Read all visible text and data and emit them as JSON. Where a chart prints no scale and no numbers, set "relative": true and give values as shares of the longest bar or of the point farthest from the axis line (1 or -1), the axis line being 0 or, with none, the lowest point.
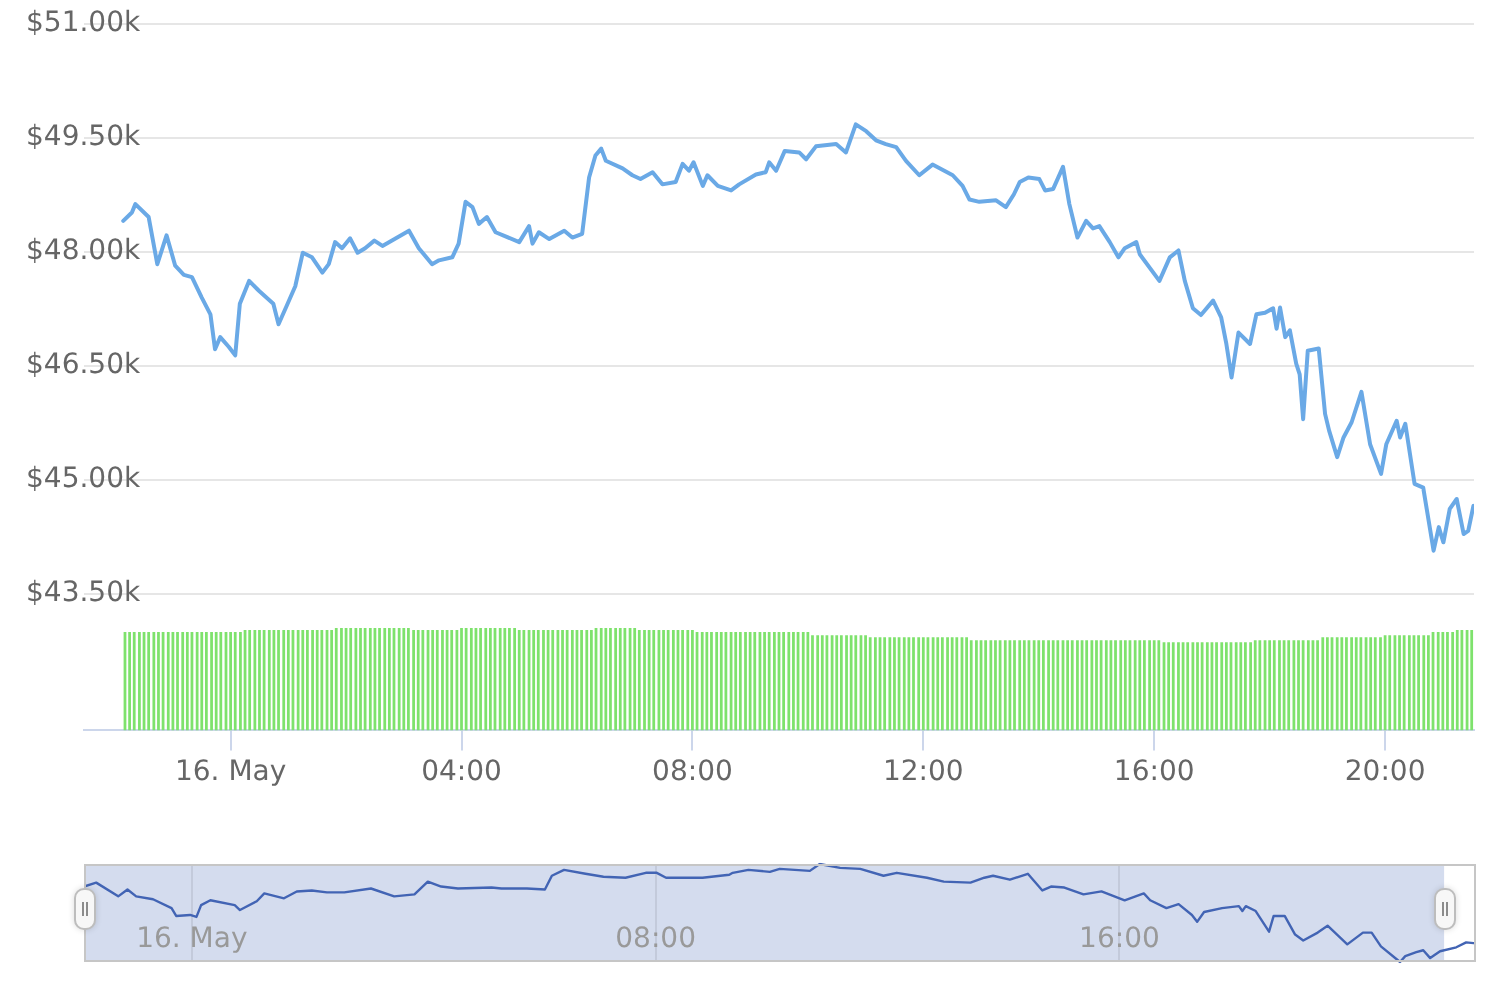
{
  "chart_data": [
    {
      "type": "line",
      "color": "#6aa9e6",
      "x": [
        -1.86,
        -1.71,
        -1.65,
        -1.42,
        -1.27,
        -1.11,
        -0.96,
        -0.81,
        -0.67,
        -0.5,
        -0.35,
        -0.27,
        -0.18,
        -0.03,
        0.08,
        0.16,
        0.32,
        0.49,
        0.74,
        0.83,
        0.97,
        1.12,
        1.25,
        1.41,
        1.59,
        1.7,
        1.81,
        1.93,
        2.07,
        2.2,
        2.33,
        2.49,
        2.63,
        3.09,
        3.26,
        3.49,
        3.61,
        3.84,
        3.95,
        4.07,
        4.19,
        4.3,
        4.44,
        4.59,
        5.0,
        5.17,
        5.23,
        5.34,
        5.52,
        5.78,
        5.92,
        6.09,
        6.21,
        6.32,
        6.42,
        6.5,
        6.79,
        6.96,
        7.1,
        7.31,
        7.48,
        7.71,
        7.83,
        7.94,
        8.02,
        8.18,
        8.26,
        8.44,
        8.67,
        8.81,
        9.1,
        9.27,
        9.33,
        9.45,
        9.6,
        9.85,
        9.97,
        10.14,
        10.49,
        10.66,
        10.83,
        11.01,
        11.18,
        11.35,
        11.53,
        11.7,
        11.93,
        12.16,
        12.51,
        12.68,
        12.8,
        12.97,
        13.26,
        13.43,
        13.57,
        13.67,
        13.82,
        14.01,
        14.11,
        14.25,
        14.42,
        14.53,
        14.67,
        14.82,
        14.94,
        15.05,
        15.23,
        15.38,
        15.49,
        15.69,
        15.75,
        16.09,
        16.27,
        16.42,
        16.53,
        16.67,
        16.81,
        17.02,
        17.16,
        17.25,
        17.34,
        17.46,
        17.66,
        17.77,
        17.92,
        18.06,
        18.12,
        18.18,
        18.27,
        18.35,
        18.46,
        18.52,
        18.58,
        18.66,
        18.85,
        18.96,
        19.03,
        19.17,
        19.28,
        19.42,
        19.59,
        19.74,
        19.93,
        20.02,
        20.2,
        20.26,
        20.35,
        20.51,
        20.66,
        20.84,
        20.93,
        21.01,
        21.12,
        21.24,
        21.36,
        21.44,
        21.53
      ],
      "values": [
        48410,
        48520,
        48630,
        48460,
        47840,
        48220,
        47820,
        47700,
        47670,
        47400,
        47180,
        46720,
        46880,
        46750,
        46640,
        47320,
        47620,
        47490,
        47320,
        47050,
        47290,
        47550,
        47990,
        47930,
        47730,
        47840,
        48130,
        48050,
        48180,
        47990,
        48050,
        48150,
        48080,
        48280,
        48050,
        47840,
        47890,
        47930,
        48110,
        48660,
        48590,
        48370,
        48460,
        48260,
        48130,
        48340,
        48110,
        48260,
        48170,
        48280,
        48190,
        48240,
        48980,
        49270,
        49360,
        49200,
        49100,
        49010,
        48960,
        49050,
        48890,
        48920,
        49160,
        49070,
        49180,
        48870,
        49010,
        48870,
        48810,
        48890,
        49020,
        49050,
        49180,
        49070,
        49330,
        49310,
        49220,
        49390,
        49420,
        49310,
        49680,
        49590,
        49470,
        49420,
        49380,
        49200,
        49010,
        49150,
        49010,
        48870,
        48690,
        48660,
        48680,
        48590,
        48760,
        48920,
        48980,
        48960,
        48810,
        48830,
        49120,
        48630,
        48190,
        48410,
        48310,
        48340,
        48130,
        47930,
        48050,
        48130,
        47970,
        47620,
        47930,
        48020,
        47620,
        47260,
        47170,
        47360,
        47140,
        46790,
        46350,
        46940,
        46790,
        47180,
        47200,
        47260,
        46990,
        47270,
        46880,
        46970,
        46530,
        46390,
        45800,
        46700,
        46730,
        45870,
        45650,
        45300,
        45560,
        45760,
        46160,
        45470,
        45080,
        45470,
        45780,
        45560,
        45740,
        44950,
        44900,
        44070,
        44380,
        44180,
        44620,
        44750,
        44290,
        44330,
        44660
      ],
      "xlim": [
        -2.54,
        21.54
      ],
      "ylim": [
        43500,
        51000
      ],
      "yticks": [
        {
          "value": 43500,
          "label": "$43.50k"
        },
        {
          "value": 45000,
          "label": "$45.00k"
        },
        {
          "value": 46500,
          "label": "$46.50k"
        },
        {
          "value": 48000,
          "label": "$48.00k"
        },
        {
          "value": 49500,
          "label": "$49.50k"
        },
        {
          "value": 51000,
          "label": "$51.00k"
        }
      ],
      "grid": "y",
      "tick_labels": "y"
    },
    {
      "type": "bar",
      "color": "#7ee26c",
      "relative": true,
      "x": [
        -1.83,
        -1.75,
        -1.67,
        -1.58,
        -1.5,
        -1.42,
        -1.33,
        -1.25,
        -1.17,
        -1.08,
        -1,
        -0.92,
        -0.83,
        -0.75,
        -0.67,
        -0.58,
        -0.5,
        -0.42,
        -0.33,
        -0.25,
        -0.17,
        -0.08,
        0,
        0.08,
        0.17,
        0.25,
        0.33,
        0.42,
        0.5,
        0.58,
        0.67,
        0.75,
        0.83,
        0.92,
        1,
        1.08,
        1.17,
        1.25,
        1.33,
        1.42,
        1.5,
        1.58,
        1.67,
        1.75,
        1.83,
        1.92,
        2,
        2.08,
        2.17,
        2.25,
        2.33,
        2.42,
        2.5,
        2.58,
        2.67,
        2.75,
        2.83,
        2.92,
        3,
        3.08,
        3.17,
        3.25,
        3.33,
        3.42,
        3.5,
        3.58,
        3.67,
        3.75,
        3.83,
        3.92,
        4,
        4.08,
        4.17,
        4.25,
        4.33,
        4.42,
        4.5,
        4.58,
        4.67,
        4.75,
        4.83,
        4.92,
        5,
        5.08,
        5.17,
        5.25,
        5.33,
        5.42,
        5.5,
        5.58,
        5.67,
        5.75,
        5.83,
        5.92,
        6,
        6.08,
        6.17,
        6.25,
        6.33,
        6.42,
        6.5,
        6.58,
        6.67,
        6.75,
        6.83,
        6.92,
        7,
        7.08,
        7.17,
        7.25,
        7.33,
        7.42,
        7.5,
        7.58,
        7.67,
        7.75,
        7.83,
        7.92,
        8,
        8.08,
        8.17,
        8.25,
        8.33,
        8.42,
        8.5,
        8.58,
        8.67,
        8.75,
        8.83,
        8.92,
        9,
        9.08,
        9.17,
        9.25,
        9.33,
        9.42,
        9.5,
        9.58,
        9.67,
        9.75,
        9.83,
        9.92,
        10,
        10.08,
        10.17,
        10.25,
        10.33,
        10.42,
        10.5,
        10.58,
        10.67,
        10.75,
        10.83,
        10.92,
        11,
        11.08,
        11.17,
        11.25,
        11.33,
        11.42,
        11.5,
        11.58,
        11.67,
        11.75,
        11.83,
        11.92,
        12,
        12.08,
        12.17,
        12.25,
        12.33,
        12.42,
        12.5,
        12.58,
        12.67,
        12.75,
        12.83,
        12.92,
        13,
        13.08,
        13.17,
        13.25,
        13.33,
        13.42,
        13.5,
        13.58,
        13.67,
        13.75,
        13.83,
        13.92,
        14,
        14.08,
        14.17,
        14.25,
        14.33,
        14.42,
        14.5,
        14.58,
        14.67,
        14.75,
        14.83,
        14.92,
        15,
        15.08,
        15.17,
        15.25,
        15.33,
        15.42,
        15.5,
        15.58,
        15.67,
        15.75,
        15.83,
        15.92,
        16,
        16.08,
        16.17,
        16.25,
        16.33,
        16.42,
        16.5,
        16.58,
        16.67,
        16.75,
        16.83,
        16.92,
        17,
        17.08,
        17.17,
        17.25,
        17.33,
        17.42,
        17.5,
        17.58,
        17.67,
        17.75,
        17.83,
        17.92,
        18,
        18.08,
        18.17,
        18.25,
        18.33,
        18.42,
        18.5,
        18.58,
        18.67,
        18.75,
        18.83,
        18.92,
        19,
        19.08,
        19.17,
        19.25,
        19.33,
        19.42,
        19.5,
        19.58,
        19.67,
        19.75,
        19.83,
        19.92,
        20,
        20.08,
        20.17,
        20.25,
        20.33,
        20.42,
        20.5,
        20.58,
        20.67,
        20.75,
        20.83,
        20.92,
        21,
        21.08,
        21.17,
        21.25,
        21.33,
        21.42,
        21.5
      ],
      "values": [
        0.96,
        0.96,
        0.96,
        0.96,
        0.96,
        0.96,
        0.96,
        0.96,
        0.96,
        0.96,
        0.96,
        0.96,
        0.96,
        0.96,
        0.96,
        0.96,
        0.96,
        0.96,
        0.96,
        0.96,
        0.96,
        0.96,
        0.96,
        0.96,
        0.96,
        0.98,
        0.98,
        0.98,
        0.98,
        0.98,
        0.98,
        0.98,
        0.98,
        0.98,
        0.98,
        0.98,
        0.98,
        0.98,
        0.98,
        0.98,
        0.98,
        0.98,
        0.98,
        0.98,
        1,
        1,
        1,
        1,
        1,
        1,
        1,
        1,
        1,
        1,
        1,
        1,
        1,
        1,
        1,
        1,
        0.98,
        0.98,
        0.98,
        0.98,
        0.98,
        0.98,
        0.98,
        0.98,
        0.98,
        0.98,
        1,
        1,
        1,
        1,
        1,
        1,
        1,
        1,
        1,
        1,
        1,
        1,
        0.98,
        0.98,
        0.98,
        0.98,
        0.98,
        0.98,
        0.98,
        0.98,
        0.98,
        0.98,
        0.98,
        0.98,
        0.98,
        0.98,
        0.98,
        0.98,
        1,
        1,
        1,
        1,
        1,
        1,
        1,
        1,
        1,
        0.98,
        0.98,
        0.98,
        0.98,
        0.98,
        0.98,
        0.98,
        0.98,
        0.98,
        0.98,
        0.98,
        0.98,
        0.96,
        0.96,
        0.96,
        0.96,
        0.96,
        0.96,
        0.96,
        0.96,
        0.96,
        0.96,
        0.96,
        0.96,
        0.96,
        0.96,
        0.96,
        0.96,
        0.96,
        0.96,
        0.96,
        0.96,
        0.96,
        0.96,
        0.96,
        0.96,
        0.93,
        0.93,
        0.93,
        0.93,
        0.93,
        0.93,
        0.93,
        0.93,
        0.93,
        0.93,
        0.93,
        0.93,
        0.91,
        0.91,
        0.91,
        0.91,
        0.91,
        0.91,
        0.91,
        0.91,
        0.91,
        0.91,
        0.91,
        0.91,
        0.91,
        0.91,
        0.91,
        0.91,
        0.91,
        0.91,
        0.91,
        0.91,
        0.91,
        0.88,
        0.88,
        0.88,
        0.88,
        0.88,
        0.88,
        0.88,
        0.88,
        0.88,
        0.88,
        0.88,
        0.88,
        0.88,
        0.88,
        0.88,
        0.88,
        0.88,
        0.88,
        0.88,
        0.88,
        0.88,
        0.88,
        0.88,
        0.88,
        0.88,
        0.88,
        0.88,
        0.88,
        0.88,
        0.88,
        0.88,
        0.88,
        0.88,
        0.88,
        0.88,
        0.88,
        0.88,
        0.88,
        0.88,
        0.88,
        0.86,
        0.86,
        0.86,
        0.86,
        0.86,
        0.86,
        0.86,
        0.86,
        0.86,
        0.86,
        0.86,
        0.86,
        0.86,
        0.86,
        0.86,
        0.86,
        0.86,
        0.86,
        0.86,
        0.88,
        0.88,
        0.88,
        0.88,
        0.88,
        0.88,
        0.88,
        0.88,
        0.88,
        0.88,
        0.88,
        0.88,
        0.88,
        0.88,
        0.91,
        0.91,
        0.91,
        0.91,
        0.91,
        0.91,
        0.91,
        0.91,
        0.91,
        0.91,
        0.91,
        0.91,
        0.91,
        0.93,
        0.93,
        0.93,
        0.93,
        0.93,
        0.93,
        0.93,
        0.93,
        0.93,
        0.93,
        0.96,
        0.96,
        0.96,
        0.96,
        0.96,
        0.98,
        0.98,
        0.98,
        0.98
      ],
      "xlim": [
        -2.54,
        21.54
      ],
      "xticks": [
        {
          "value": 0,
          "label": "16. May"
        },
        {
          "value": 4,
          "label": "04:00"
        },
        {
          "value": 8,
          "label": "08:00"
        },
        {
          "value": 12,
          "label": "12:00"
        },
        {
          "value": 16,
          "label": "16:00"
        },
        {
          "value": 20,
          "label": "20:00"
        }
      ],
      "tick_labels": "x"
    },
    {
      "type": "line",
      "color": "#4264b4",
      "relative": true,
      "x": [
        -1.86,
        -1.65,
        -1.27,
        -1.11,
        -0.96,
        -0.67,
        -0.35,
        -0.27,
        -0.03,
        0.08,
        0.16,
        0.32,
        0.74,
        0.83,
        1.12,
        1.25,
        1.59,
        1.81,
        2.07,
        2.33,
        2.63,
        3.09,
        3.49,
        3.84,
        4.07,
        4.3,
        4.59,
        5.17,
        5.34,
        5.78,
        6.09,
        6.21,
        6.42,
        6.79,
        7.1,
        7.48,
        7.83,
        8.02,
        8.18,
        8.44,
        8.81,
        9.27,
        9.33,
        9.6,
        9.97,
        10.14,
        10.66,
        10.83,
        11.18,
        11.53,
        11.93,
        12.16,
        12.68,
        12.97,
        13.43,
        13.67,
        13.82,
        14.11,
        14.42,
        14.67,
        14.82,
        15.05,
        15.38,
        15.69,
        16.09,
        16.42,
        16.53,
        16.81,
        17.02,
        17.25,
        17.34,
        17.46,
        17.77,
        18.06,
        18.12,
        18.18,
        18.35,
        18.58,
        18.66,
        18.85,
        19.03,
        19.17,
        19.42,
        19.59,
        19.93,
        20.2,
        20.35,
        20.51,
        20.84,
        20.93,
        21.12,
        21.24,
        21.36,
        21.53,
        21.81,
        21.98,
        22.15
      ],
      "values": [
        0.77,
        0.81,
        0.67,
        0.74,
        0.67,
        0.64,
        0.55,
        0.47,
        0.48,
        0.46,
        0.58,
        0.63,
        0.58,
        0.53,
        0.62,
        0.7,
        0.65,
        0.72,
        0.73,
        0.71,
        0.71,
        0.75,
        0.67,
        0.69,
        0.82,
        0.77,
        0.75,
        0.76,
        0.75,
        0.75,
        0.74,
        0.88,
        0.94,
        0.9,
        0.87,
        0.86,
        0.91,
        0.91,
        0.86,
        0.86,
        0.86,
        0.89,
        0.91,
        0.94,
        0.92,
        0.95,
        0.93,
        1,
        0.96,
        0.95,
        0.88,
        0.91,
        0.86,
        0.82,
        0.81,
        0.86,
        0.88,
        0.84,
        0.9,
        0.73,
        0.77,
        0.76,
        0.69,
        0.72,
        0.63,
        0.7,
        0.63,
        0.55,
        0.59,
        0.48,
        0.41,
        0.51,
        0.55,
        0.57,
        0.52,
        0.57,
        0.52,
        0.31,
        0.47,
        0.47,
        0.28,
        0.22,
        0.3,
        0.37,
        0.18,
        0.3,
        0.3,
        0.16,
        0,
        0.06,
        0.1,
        0.12,
        0.04,
        0.11,
        0.15,
        0.2,
        0.19
      ],
      "xlim": [
        -1.86,
        22.15
      ],
      "xticks": [
        {
          "value": 0,
          "label": "16. May"
        },
        {
          "value": 8,
          "label": "08:00"
        },
        {
          "value": 16,
          "label": "16:00"
        }
      ],
      "grid": "x",
      "tick_labels": "x",
      "bands": [
        {
          "axis": "x",
          "from": -1.86,
          "to": 21.6,
          "color": "#d4dcee"
        }
      ]
    }
  ]
}
